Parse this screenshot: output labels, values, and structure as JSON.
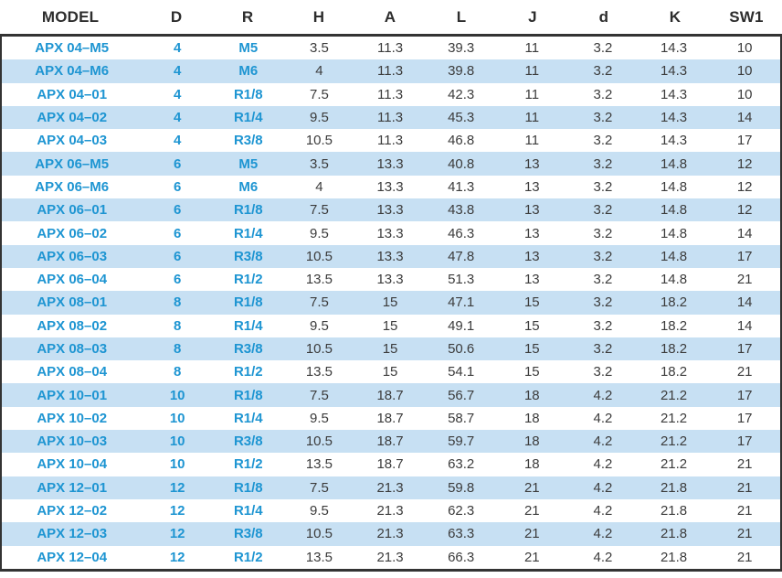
{
  "colors": {
    "accent_text": "#1e95d2",
    "body_text": "#3c3c3c",
    "stripe": "#c7e0f3",
    "border": "#333333",
    "header_text": "#2d2d2d"
  },
  "table": {
    "columns": [
      "MODEL",
      "D",
      "R",
      "H",
      "A",
      "L",
      "J",
      "d",
      "K",
      "SW1"
    ],
    "accent_column_count": 3,
    "rows": [
      [
        "APX 04–M5",
        "4",
        "M5",
        "3.5",
        "11.3",
        "39.3",
        "11",
        "3.2",
        "14.3",
        "10"
      ],
      [
        "APX 04–M6",
        "4",
        "M6",
        "4",
        "11.3",
        "39.8",
        "11",
        "3.2",
        "14.3",
        "10"
      ],
      [
        "APX 04–01",
        "4",
        "R1/8",
        "7.5",
        "11.3",
        "42.3",
        "11",
        "3.2",
        "14.3",
        "10"
      ],
      [
        "APX 04–02",
        "4",
        "R1/4",
        "9.5",
        "11.3",
        "45.3",
        "11",
        "3.2",
        "14.3",
        "14"
      ],
      [
        "APX 04–03",
        "4",
        "R3/8",
        "10.5",
        "11.3",
        "46.8",
        "11",
        "3.2",
        "14.3",
        "17"
      ],
      [
        "APX 06–M5",
        "6",
        "M5",
        "3.5",
        "13.3",
        "40.8",
        "13",
        "3.2",
        "14.8",
        "12"
      ],
      [
        "APX 06–M6",
        "6",
        "M6",
        "4",
        "13.3",
        "41.3",
        "13",
        "3.2",
        "14.8",
        "12"
      ],
      [
        "APX 06–01",
        "6",
        "R1/8",
        "7.5",
        "13.3",
        "43.8",
        "13",
        "3.2",
        "14.8",
        "12"
      ],
      [
        "APX 06–02",
        "6",
        "R1/4",
        "9.5",
        "13.3",
        "46.3",
        "13",
        "3.2",
        "14.8",
        "14"
      ],
      [
        "APX 06–03",
        "6",
        "R3/8",
        "10.5",
        "13.3",
        "47.8",
        "13",
        "3.2",
        "14.8",
        "17"
      ],
      [
        "APX 06–04",
        "6",
        "R1/2",
        "13.5",
        "13.3",
        "51.3",
        "13",
        "3.2",
        "14.8",
        "21"
      ],
      [
        "APX 08–01",
        "8",
        "R1/8",
        "7.5",
        "15",
        "47.1",
        "15",
        "3.2",
        "18.2",
        "14"
      ],
      [
        "APX 08–02",
        "8",
        "R1/4",
        "9.5",
        "15",
        "49.1",
        "15",
        "3.2",
        "18.2",
        "14"
      ],
      [
        "APX 08–03",
        "8",
        "R3/8",
        "10.5",
        "15",
        "50.6",
        "15",
        "3.2",
        "18.2",
        "17"
      ],
      [
        "APX 08–04",
        "8",
        "R1/2",
        "13.5",
        "15",
        "54.1",
        "15",
        "3.2",
        "18.2",
        "21"
      ],
      [
        "APX 10–01",
        "10",
        "R1/8",
        "7.5",
        "18.7",
        "56.7",
        "18",
        "4.2",
        "21.2",
        "17"
      ],
      [
        "APX 10–02",
        "10",
        "R1/4",
        "9.5",
        "18.7",
        "58.7",
        "18",
        "4.2",
        "21.2",
        "17"
      ],
      [
        "APX 10–03",
        "10",
        "R3/8",
        "10.5",
        "18.7",
        "59.7",
        "18",
        "4.2",
        "21.2",
        "17"
      ],
      [
        "APX 10–04",
        "10",
        "R1/2",
        "13.5",
        "18.7",
        "63.2",
        "18",
        "4.2",
        "21.2",
        "21"
      ],
      [
        "APX 12–01",
        "12",
        "R1/8",
        "7.5",
        "21.3",
        "59.8",
        "21",
        "4.2",
        "21.8",
        "21"
      ],
      [
        "APX 12–02",
        "12",
        "R1/4",
        "9.5",
        "21.3",
        "62.3",
        "21",
        "4.2",
        "21.8",
        "21"
      ],
      [
        "APX 12–03",
        "12",
        "R3/8",
        "10.5",
        "21.3",
        "63.3",
        "21",
        "4.2",
        "21.8",
        "21"
      ],
      [
        "APX 12–04",
        "12",
        "R1/2",
        "13.5",
        "21.3",
        "66.3",
        "21",
        "4.2",
        "21.8",
        "21"
      ]
    ]
  }
}
